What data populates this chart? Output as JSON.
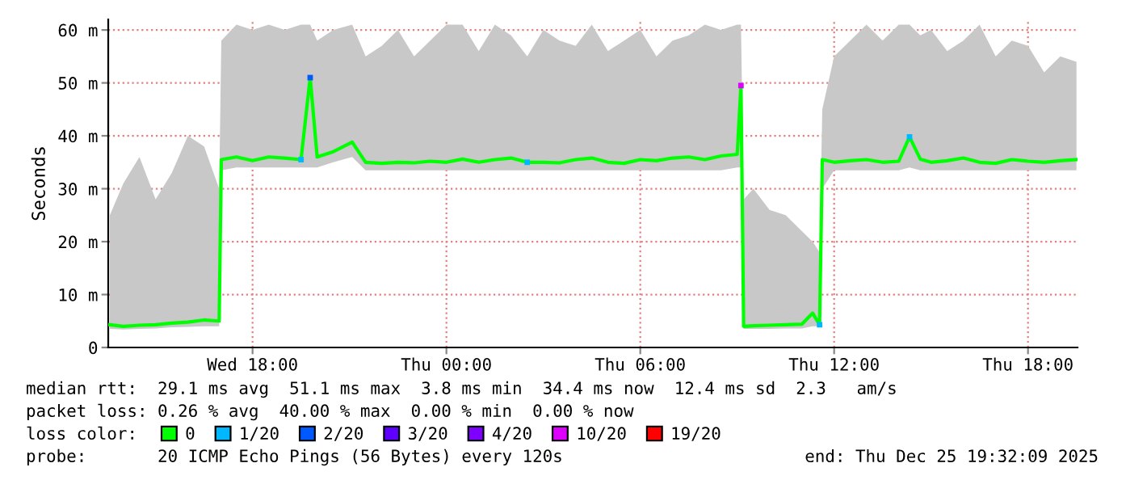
{
  "chart_data": {
    "type": "line",
    "ylabel": "Seconds",
    "xlim": [
      "2025-12-24T13:32",
      "2025-12-25T19:32"
    ],
    "xticks": [
      {
        "value": "2025-12-24T18:00",
        "label": "Wed 18:00"
      },
      {
        "value": "2025-12-25T00:00",
        "label": "Thu 00:00"
      },
      {
        "value": "2025-12-25T06:00",
        "label": "Thu 06:00"
      },
      {
        "value": "2025-12-25T12:00",
        "label": "Thu 12:00"
      },
      {
        "value": "2025-12-25T18:00",
        "label": "Thu 18:00"
      }
    ],
    "ylim": [
      0,
      62
    ],
    "yticks": [
      0,
      {
        "value": 10,
        "label": "10 m"
      },
      {
        "value": 20,
        "label": "20 m"
      },
      {
        "value": 30,
        "label": "30 m"
      },
      {
        "value": 40,
        "label": "40 m"
      },
      {
        "value": 50,
        "label": "50 m"
      },
      {
        "value": 60,
        "label": "60 m"
      }
    ],
    "grid": true,
    "legend": "bottom",
    "legend_title": "loss color:",
    "series": [
      {
        "name": "0",
        "color": "#00ff00",
        "x": [
          "2025-12-24T13:35",
          "2025-12-24T14:00",
          "2025-12-24T14:30",
          "2025-12-24T15:00",
          "2025-12-24T15:30",
          "2025-12-24T16:00",
          "2025-12-24T16:30",
          "2025-12-24T16:58",
          "2025-12-24T17:02",
          "2025-12-24T17:30",
          "2025-12-24T18:00",
          "2025-12-24T18:30",
          "2025-12-24T19:00",
          "2025-12-24T19:30",
          "2025-12-24T19:47",
          "2025-12-24T20:00",
          "2025-12-24T20:30",
          "2025-12-24T21:05",
          "2025-12-24T21:30",
          "2025-12-24T22:00",
          "2025-12-24T22:30",
          "2025-12-24T23:00",
          "2025-12-24T23:30",
          "2025-12-25T00:00",
          "2025-12-25T00:30",
          "2025-12-25T01:00",
          "2025-12-25T01:30",
          "2025-12-25T02:00",
          "2025-12-25T02:30",
          "2025-12-25T03:00",
          "2025-12-25T03:30",
          "2025-12-25T04:00",
          "2025-12-25T04:30",
          "2025-12-25T05:00",
          "2025-12-25T05:30",
          "2025-12-25T06:00",
          "2025-12-25T06:30",
          "2025-12-25T07:00",
          "2025-12-25T07:30",
          "2025-12-25T08:00",
          "2025-12-25T08:30",
          "2025-12-25T09:00",
          "2025-12-25T09:07",
          "2025-12-25T09:12",
          "2025-12-25T09:30",
          "2025-12-25T10:00",
          "2025-12-25T10:30",
          "2025-12-25T11:00",
          "2025-12-25T11:20",
          "2025-12-25T11:33",
          "2025-12-25T11:38",
          "2025-12-25T12:00",
          "2025-12-25T12:30",
          "2025-12-25T13:00",
          "2025-12-25T13:30",
          "2025-12-25T14:00",
          "2025-12-25T14:20",
          "2025-12-25T14:40",
          "2025-12-25T15:00",
          "2025-12-25T15:30",
          "2025-12-25T16:00",
          "2025-12-25T16:30",
          "2025-12-25T17:00",
          "2025-12-25T17:30",
          "2025-12-25T18:00",
          "2025-12-25T18:30",
          "2025-12-25T19:00",
          "2025-12-25T19:30"
        ],
        "values": [
          4.3,
          4.0,
          4.2,
          4.3,
          4.6,
          4.8,
          5.2,
          5.0,
          35.5,
          36.0,
          35.3,
          36.0,
          35.8,
          35.5,
          51.0,
          36.0,
          37.0,
          38.8,
          35.0,
          34.8,
          35.0,
          34.9,
          35.2,
          35.0,
          35.6,
          35.0,
          35.5,
          35.8,
          35.0,
          35.0,
          34.9,
          35.5,
          35.8,
          35.0,
          34.8,
          35.5,
          35.3,
          35.8,
          36.0,
          35.5,
          36.2,
          36.5,
          49.5,
          4.0,
          4.1,
          4.2,
          4.3,
          4.4,
          6.5,
          4.3,
          35.5,
          35.0,
          35.3,
          35.5,
          35.0,
          35.2,
          39.8,
          35.6,
          35.0,
          35.3,
          35.8,
          35.0,
          34.8,
          35.5,
          35.2,
          35.0,
          35.3,
          35.5
        ],
        "lower": [
          3.5,
          3.4,
          3.5,
          3.6,
          3.8,
          3.9,
          4.0,
          4.0,
          33.5,
          34,
          34,
          34,
          34,
          34,
          34,
          34,
          35,
          36,
          33.5,
          33.5,
          33.5,
          33.5,
          33.5,
          33.5,
          33.5,
          33.5,
          33.5,
          33.5,
          33.5,
          33.5,
          33.5,
          33.5,
          33.5,
          33.5,
          33.5,
          33.5,
          33.5,
          33.5,
          33.5,
          33.5,
          33.5,
          34,
          34,
          3.5,
          3.5,
          3.5,
          3.6,
          3.6,
          4,
          4,
          30,
          33.5,
          33.5,
          33.5,
          33.5,
          33.5,
          34,
          33.5,
          33.5,
          33.5,
          33.5,
          33.5,
          33.5,
          33.5,
          33.5,
          33.5,
          33.5,
          33.5
        ],
        "upper": [
          25,
          31,
          36,
          28,
          33,
          40,
          38,
          30,
          58,
          61,
          60,
          61,
          60,
          61,
          61,
          58,
          60,
          61,
          55,
          57,
          60,
          55,
          58,
          61,
          61,
          56,
          61,
          59,
          55,
          60,
          58,
          57,
          61,
          56,
          58,
          60,
          55,
          58,
          59,
          61,
          60,
          61,
          61,
          28,
          30,
          26,
          25,
          22,
          20,
          18,
          45,
          55,
          58,
          61,
          58,
          61,
          61,
          59,
          60,
          56,
          58,
          61,
          55,
          58,
          57,
          52,
          55,
          54
        ]
      },
      {
        "name": "1/20",
        "type": "scatter",
        "color": "#00b8ff",
        "x": [
          "2025-12-24T19:30",
          "2025-12-25T02:30",
          "2025-12-25T11:33",
          "2025-12-25T14:20"
        ],
        "values": [
          35.5,
          35.0,
          4.3,
          39.8
        ]
      },
      {
        "name": "2/20",
        "type": "scatter",
        "color": "#0059ff",
        "x": [
          "2025-12-24T19:47"
        ],
        "values": [
          51.0
        ]
      },
      {
        "name": "3/20",
        "type": "scatter",
        "color": "#5e00ff"
      },
      {
        "name": "4/20",
        "type": "scatter",
        "color": "#7e00ff"
      },
      {
        "name": "10/20",
        "type": "scatter",
        "color": "#dd00ff",
        "x": [
          "2025-12-25T09:07"
        ],
        "values": [
          49.5
        ]
      },
      {
        "name": "19/20",
        "type": "scatter",
        "color": "#ff0000"
      }
    ],
    "annotations": [
      "median rtt:  29.1 ms avg  51.1 ms max  3.8 ms min  34.4 ms now  12.4 ms sd  2.3   am/s",
      "packet loss: 0.26 % avg  40.00 % max  0.00 % min  0.00 % now",
      "probe:       20 ICMP Echo Pings (56 Bytes) every 120s",
      "end: Thu Dec 25 19:32:09 2025"
    ]
  }
}
